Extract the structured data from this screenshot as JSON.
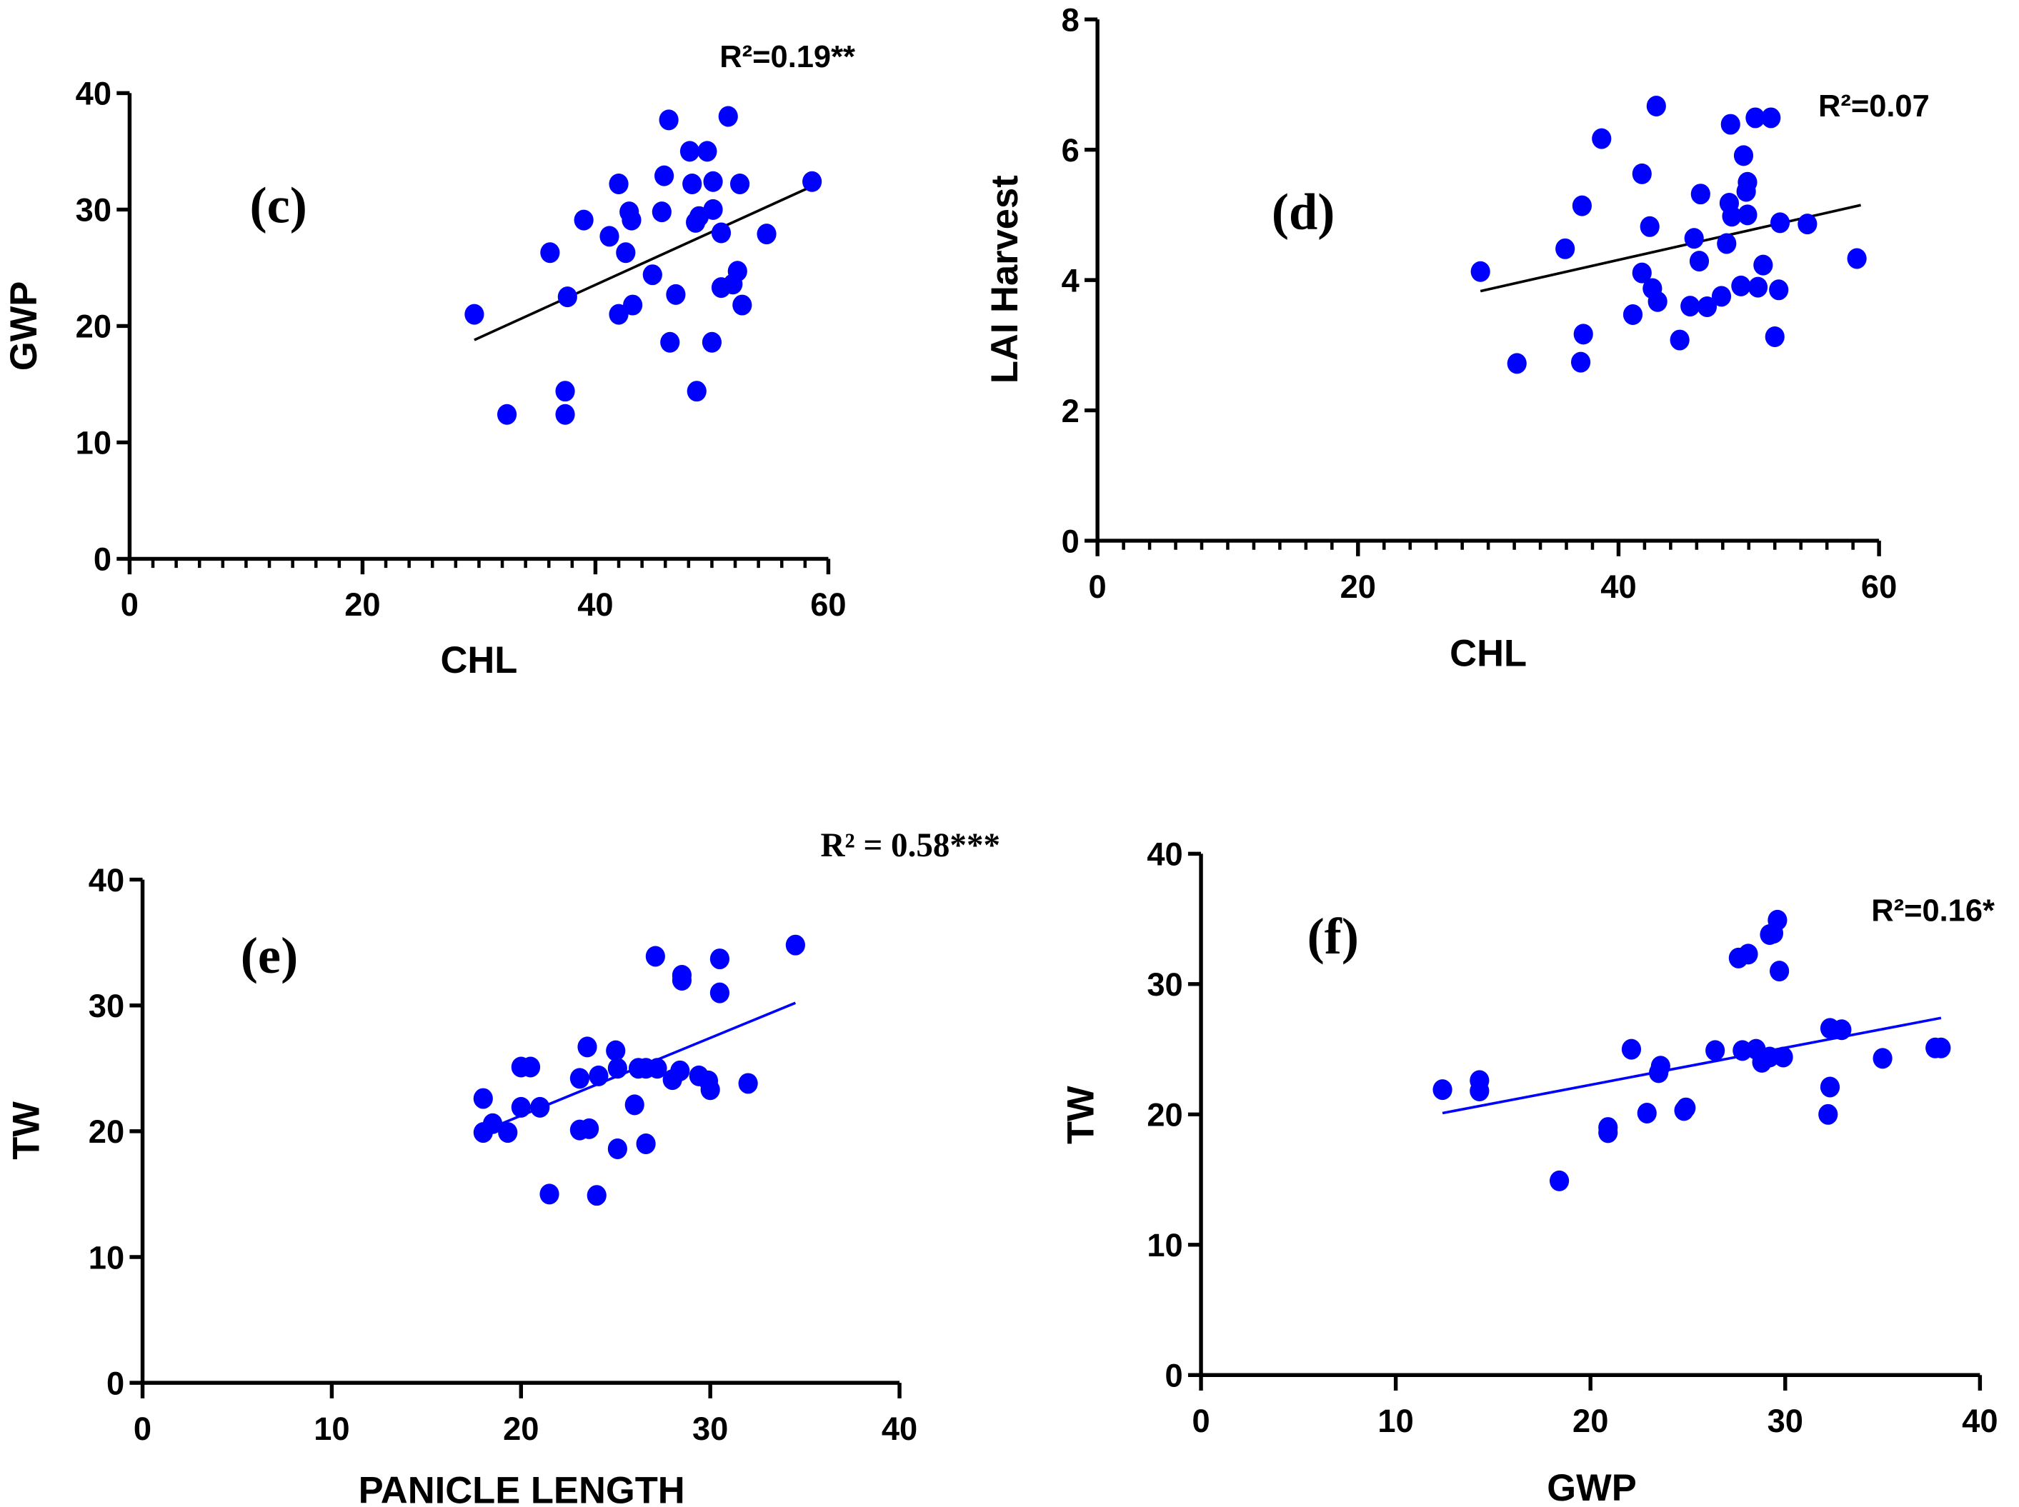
{
  "chart_data": [
    {
      "type": "scatter",
      "panel_label": "(c)",
      "annotation": "R²=0.19**",
      "xlabel": "CHL",
      "ylabel": "GWP",
      "xlim": [
        0,
        60
      ],
      "ylim": [
        0,
        40
      ],
      "xticks": [
        0,
        20,
        40,
        60
      ],
      "yticks": [
        0,
        10,
        20,
        30,
        40
      ],
      "point_color": "#0000FF",
      "line_color": "#000000",
      "regression": {
        "x": [
          29.6,
          58.6
        ],
        "y": [
          18.8,
          32.0
        ]
      },
      "points": [
        [
          29.6,
          21.0
        ],
        [
          32.4,
          12.4
        ],
        [
          36.1,
          26.3
        ],
        [
          37.4,
          14.4
        ],
        [
          37.4,
          12.4
        ],
        [
          37.6,
          22.5
        ],
        [
          39.0,
          29.1
        ],
        [
          41.2,
          27.7
        ],
        [
          42.0,
          32.2
        ],
        [
          42.0,
          21.0
        ],
        [
          42.6,
          26.3
        ],
        [
          42.9,
          29.8
        ],
        [
          43.1,
          29.1
        ],
        [
          43.2,
          21.8
        ],
        [
          44.9,
          24.4
        ],
        [
          45.7,
          29.8
        ],
        [
          45.9,
          32.9
        ],
        [
          46.3,
          37.7
        ],
        [
          46.4,
          18.6
        ],
        [
          46.9,
          22.7
        ],
        [
          48.1,
          35.0
        ],
        [
          48.3,
          32.2
        ],
        [
          48.6,
          28.9
        ],
        [
          48.7,
          14.4
        ],
        [
          48.9,
          29.4
        ],
        [
          49.6,
          35.0
        ],
        [
          50.0,
          18.6
        ],
        [
          50.1,
          32.4
        ],
        [
          50.1,
          30.0
        ],
        [
          50.8,
          28.0
        ],
        [
          50.8,
          23.3
        ],
        [
          51.8,
          23.6
        ],
        [
          51.4,
          38.0
        ],
        [
          52.2,
          24.7
        ],
        [
          52.4,
          32.2
        ],
        [
          52.6,
          21.8
        ],
        [
          54.7,
          27.9
        ],
        [
          58.6,
          32.4
        ]
      ]
    },
    {
      "type": "scatter",
      "panel_label": "(d)",
      "annotation": "R²=0.07",
      "xlabel": "CHL",
      "ylabel": "LAI Harvest",
      "xlim": [
        0,
        60
      ],
      "ylim": [
        0,
        8
      ],
      "xticks": [
        0,
        20,
        40,
        60
      ],
      "yticks": [
        0,
        2,
        4,
        6,
        8
      ],
      "point_color": "#0000FF",
      "line_color": "#000000",
      "regression": {
        "x": [
          29.4,
          58.6
        ],
        "y": [
          3.83,
          5.15
        ]
      },
      "points": [
        [
          29.4,
          4.13
        ],
        [
          32.2,
          2.72
        ],
        [
          35.9,
          4.48
        ],
        [
          37.2,
          5.14
        ],
        [
          37.3,
          3.17
        ],
        [
          37.1,
          2.74
        ],
        [
          38.7,
          6.17
        ],
        [
          41.1,
          3.47
        ],
        [
          41.8,
          4.11
        ],
        [
          41.8,
          5.63
        ],
        [
          42.4,
          4.82
        ],
        [
          42.6,
          3.87
        ],
        [
          43.0,
          3.67
        ],
        [
          42.9,
          6.67
        ],
        [
          44.7,
          3.08
        ],
        [
          45.5,
          3.6
        ],
        [
          45.8,
          4.64
        ],
        [
          46.2,
          4.29
        ],
        [
          46.3,
          5.32
        ],
        [
          46.8,
          3.59
        ],
        [
          47.9,
          3.75
        ],
        [
          48.3,
          4.56
        ],
        [
          48.5,
          5.18
        ],
        [
          48.6,
          6.39
        ],
        [
          48.7,
          4.98
        ],
        [
          49.6,
          5.91
        ],
        [
          49.8,
          5.36
        ],
        [
          49.9,
          5.5
        ],
        [
          49.9,
          5.0
        ],
        [
          49.4,
          3.91
        ],
        [
          50.5,
          6.49
        ],
        [
          50.7,
          3.89
        ],
        [
          51.1,
          4.23
        ],
        [
          51.7,
          6.49
        ],
        [
          52.0,
          3.13
        ],
        [
          52.4,
          4.88
        ],
        [
          52.3,
          3.85
        ],
        [
          54.5,
          4.86
        ],
        [
          58.3,
          4.33
        ]
      ]
    },
    {
      "type": "scatter",
      "panel_label": "(e)",
      "annotation": "R² = 0.58***",
      "xlabel": "PANICLE LENGTH",
      "ylabel": "TW",
      "xlim": [
        0,
        40
      ],
      "ylim": [
        0,
        40
      ],
      "xticks": [
        0,
        10,
        20,
        30,
        40
      ],
      "yticks": [
        0,
        10,
        20,
        30,
        40
      ],
      "point_color": "#0000FF",
      "line_color": "#0000FF",
      "regression": {
        "x": [
          18.0,
          34.5
        ],
        "y": [
          20.0,
          30.2
        ]
      },
      "points": [
        [
          18.0,
          22.6
        ],
        [
          18.0,
          19.9
        ],
        [
          18.5,
          20.6
        ],
        [
          19.3,
          19.9
        ],
        [
          20.0,
          25.1
        ],
        [
          20.5,
          25.1
        ],
        [
          20.0,
          21.9
        ],
        [
          21.0,
          21.9
        ],
        [
          21.5,
          15.0
        ],
        [
          23.1,
          24.2
        ],
        [
          23.1,
          20.1
        ],
        [
          23.5,
          26.7
        ],
        [
          23.6,
          20.2
        ],
        [
          24.0,
          14.9
        ],
        [
          24.1,
          24.4
        ],
        [
          25.0,
          26.4
        ],
        [
          25.1,
          25.0
        ],
        [
          25.1,
          18.6
        ],
        [
          26.0,
          22.1
        ],
        [
          26.2,
          25.0
        ],
        [
          26.6,
          25.0
        ],
        [
          26.6,
          19.0
        ],
        [
          27.1,
          33.9
        ],
        [
          27.2,
          25.0
        ],
        [
          28.0,
          24.1
        ],
        [
          28.4,
          24.8
        ],
        [
          28.5,
          32.4
        ],
        [
          28.5,
          32.0
        ],
        [
          29.4,
          24.4
        ],
        [
          29.9,
          24.0
        ],
        [
          30.0,
          23.3
        ],
        [
          30.5,
          33.7
        ],
        [
          30.5,
          31.0
        ],
        [
          32.0,
          23.8
        ],
        [
          34.5,
          34.8
        ]
      ]
    },
    {
      "type": "scatter",
      "panel_label": "(f)",
      "annotation": "R²=0.16*",
      "xlabel": "GWP",
      "ylabel": "TW",
      "xlim": [
        0,
        40
      ],
      "ylim": [
        0,
        40
      ],
      "xticks": [
        0,
        10,
        20,
        30,
        40
      ],
      "yticks": [
        0,
        10,
        20,
        30,
        40
      ],
      "point_color": "#0000FF",
      "line_color": "#0000FF",
      "regression": {
        "x": [
          12.4,
          38.0
        ],
        "y": [
          20.1,
          27.4
        ]
      },
      "points": [
        [
          12.4,
          21.9
        ],
        [
          14.3,
          22.6
        ],
        [
          14.3,
          21.8
        ],
        [
          18.4,
          14.9
        ],
        [
          20.9,
          19.0
        ],
        [
          20.9,
          18.6
        ],
        [
          22.1,
          25.0
        ],
        [
          22.9,
          20.1
        ],
        [
          23.6,
          23.7
        ],
        [
          23.5,
          23.2
        ],
        [
          24.8,
          20.3
        ],
        [
          24.9,
          20.5
        ],
        [
          26.4,
          24.9
        ],
        [
          27.6,
          32.0
        ],
        [
          28.1,
          32.3
        ],
        [
          27.8,
          24.9
        ],
        [
          28.5,
          25.0
        ],
        [
          28.8,
          24.0
        ],
        [
          29.2,
          33.8
        ],
        [
          29.4,
          33.9
        ],
        [
          29.6,
          34.9
        ],
        [
          29.7,
          31.0
        ],
        [
          29.2,
          24.4
        ],
        [
          29.9,
          24.4
        ],
        [
          32.2,
          20.0
        ],
        [
          32.3,
          22.1
        ],
        [
          32.3,
          26.6
        ],
        [
          32.9,
          26.5
        ],
        [
          35.0,
          24.3
        ],
        [
          37.7,
          25.1
        ],
        [
          38.0,
          25.1
        ]
      ]
    }
  ]
}
